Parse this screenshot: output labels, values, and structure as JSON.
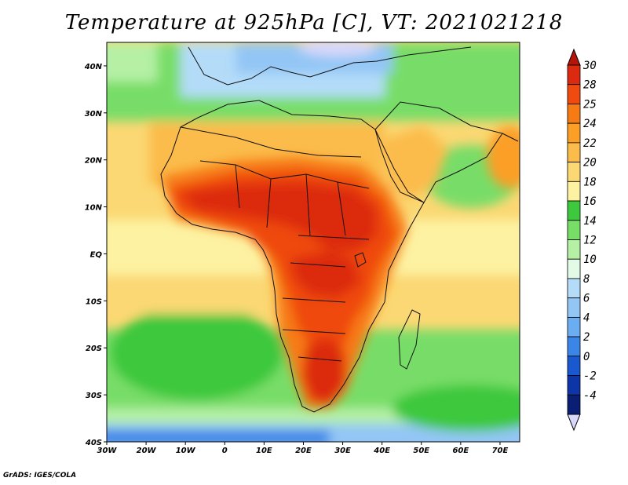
{
  "title": "Temperature at 925hPa [C], VT: 2021021218",
  "credit": "GrADS: IGES/COLA",
  "map": {
    "projection": "lat-lon",
    "lon_range": [
      -30,
      75
    ],
    "lat_range": [
      -40,
      45
    ],
    "lon_ticks": [
      {
        "value": -30,
        "label": "30W"
      },
      {
        "value": -20,
        "label": "20W"
      },
      {
        "value": -10,
        "label": "10W"
      },
      {
        "value": 0,
        "label": "0"
      },
      {
        "value": 10,
        "label": "10E"
      },
      {
        "value": 20,
        "label": "20E"
      },
      {
        "value": 30,
        "label": "30E"
      },
      {
        "value": 40,
        "label": "40E"
      },
      {
        "value": 50,
        "label": "50E"
      },
      {
        "value": 60,
        "label": "60E"
      },
      {
        "value": 70,
        "label": "70E"
      }
    ],
    "lat_ticks": [
      {
        "value": 40,
        "label": "40N"
      },
      {
        "value": 30,
        "label": "30N"
      },
      {
        "value": 20,
        "label": "20N"
      },
      {
        "value": 10,
        "label": "10N"
      },
      {
        "value": 0,
        "label": "EQ"
      },
      {
        "value": -10,
        "label": "10S"
      },
      {
        "value": -20,
        "label": "20S"
      },
      {
        "value": -30,
        "label": "30S"
      },
      {
        "value": -40,
        "label": "40S"
      }
    ]
  },
  "colorbar": {
    "levels": [
      {
        "label": "30",
        "color": "#dc2a10"
      },
      {
        "label": "28",
        "color": "#ef4a10"
      },
      {
        "label": "25",
        "color": "#f77b14"
      },
      {
        "label": "24",
        "color": "#fb9f27"
      },
      {
        "label": "22",
        "color": "#fbbc4c"
      },
      {
        "label": "20",
        "color": "#fbd873"
      },
      {
        "label": "18",
        "color": "#fdf2a2"
      },
      {
        "label": "16",
        "color": "#3ec83e"
      },
      {
        "label": "14",
        "color": "#78dd67"
      },
      {
        "label": "12",
        "color": "#b5f0a5"
      },
      {
        "label": "10",
        "color": "#e3fbe6"
      },
      {
        "label": "8",
        "color": "#b4dcf9"
      },
      {
        "label": "6",
        "color": "#93c6f5"
      },
      {
        "label": "4",
        "color": "#6aaef1"
      },
      {
        "label": "2",
        "color": "#3a85e7"
      },
      {
        "label": "0",
        "color": "#1a58cf"
      },
      {
        "label": "-2",
        "color": "#0d35a8"
      },
      {
        "label": "-4",
        "color": "#0a1f74"
      }
    ],
    "top_color": "#b4150a",
    "bottom_color": "#d8d8fa"
  }
}
